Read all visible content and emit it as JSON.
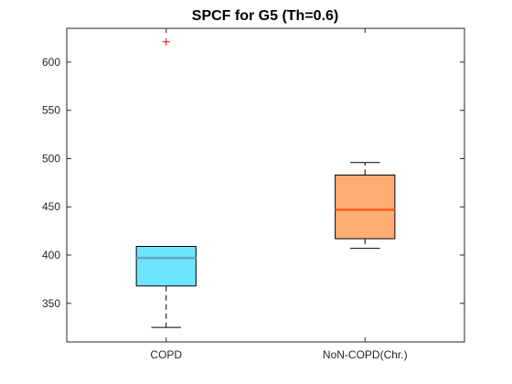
{
  "chart_data": {
    "type": "box",
    "title": "SPCF  for G5 (Th=0.6)",
    "xlabel": "",
    "ylabel": "",
    "categories": [
      "COPD",
      "NoN-COPD(Chr.)"
    ],
    "ylim": [
      310,
      635
    ],
    "yticks": [
      350,
      400,
      450,
      500,
      550,
      600
    ],
    "grid": false,
    "boxes": [
      {
        "category": "COPD",
        "q1": 368,
        "median": 397,
        "q3": 409,
        "whisker_low": 325,
        "whisker_high": 409,
        "outliers": [
          621
        ],
        "fill": "#6fe4ff",
        "median_color": "#5fa8bf"
      },
      {
        "category": "NoN-COPD(Chr.)",
        "q1": 417,
        "median": 447,
        "q3": 483,
        "whisker_low": 407,
        "whisker_high": 496,
        "outliers": [],
        "fill": "#ffae73",
        "median_color": "#ff5a1f"
      }
    ],
    "outlier_color": "#ff0000"
  }
}
